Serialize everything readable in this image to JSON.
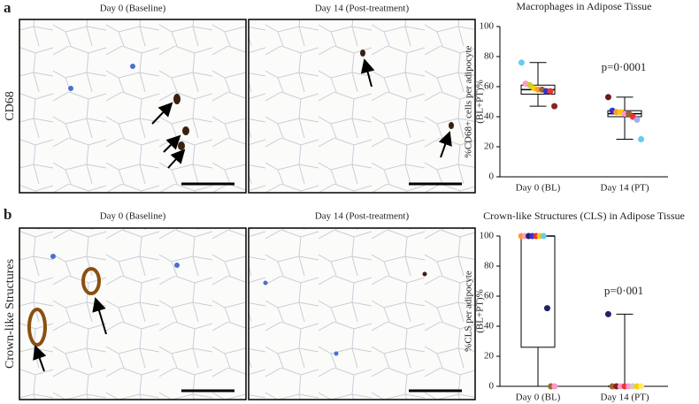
{
  "panels": {
    "a": {
      "label": "a",
      "row_label": "CD68",
      "image_titles": [
        "Day 0 (Baseline)",
        "Day 14 (Post-treatment)"
      ]
    },
    "b": {
      "label": "b",
      "row_label": "Crown-like Structures",
      "image_titles": [
        "Day 0 (Baseline)",
        "Day 14 (Post-treatment)"
      ]
    }
  },
  "chart_data": [
    {
      "type": "box",
      "title": "Macrophages in Adipose Tissue",
      "ylabel": [
        "%CD68+ cells per adipocyte",
        "(BL+PT)%"
      ],
      "categories": [
        "Day 0 (BL)",
        "Day 14 (PT)"
      ],
      "ylim": [
        0,
        100
      ],
      "yticks": [
        0,
        20,
        40,
        60,
        80,
        100
      ],
      "annotation": "p=0·0001",
      "boxes": [
        {
          "min": 47,
          "q1": 55,
          "median": 58,
          "q3": 61,
          "max": 76
        },
        {
          "min": 25,
          "q1": 40,
          "median": 42,
          "q3": 44,
          "max": 53
        }
      ],
      "points": [
        {
          "values": [
            76,
            62,
            61,
            59,
            58,
            58,
            57,
            57,
            47
          ],
          "colors": [
            "#66ccee",
            "#ff99cc",
            "#cccc33",
            "#ffcc00",
            "#ff9933",
            "#996633",
            "#3333cc",
            "#ee3333",
            "#882222"
          ]
        },
        {
          "values": [
            53,
            44,
            43,
            43,
            42,
            42,
            40,
            38,
            25
          ],
          "colors": [
            "#6b1a1a",
            "#3333cc",
            "#ff9933",
            "#ffcc00",
            "#ff99cc",
            "#996633",
            "#ee3333",
            "#aaaaee",
            "#66ccee"
          ]
        }
      ]
    },
    {
      "type": "box",
      "title": "Crown-like Structures (CLS) in Adipose Tissue",
      "ylabel": [
        "%CLS per adipocyte",
        "(BL+PT)%"
      ],
      "categories": [
        "Day 0 (BL)",
        "Day 14 (PT)"
      ],
      "ylim": [
        0,
        100
      ],
      "yticks": [
        0,
        20,
        40,
        60,
        80,
        100
      ],
      "annotation": "p=0·001",
      "boxes": [
        {
          "min": 0,
          "q1": 26,
          "median": 100,
          "q3": 100,
          "max": 100
        },
        {
          "min": 0,
          "q1": 0,
          "median": 0,
          "q3": 0,
          "max": 48
        }
      ],
      "points": [
        {
          "values": [
            100,
            100,
            100,
            100,
            100,
            100,
            100,
            52,
            0,
            0
          ],
          "colors": [
            "#ff9933",
            "#ff99cc",
            "#222266",
            "#3333cc",
            "#ee3333",
            "#ffcc00",
            "#66ccee",
            "#222266",
            "#996633",
            "#ff99cc"
          ]
        },
        {
          "values": [
            48,
            0,
            0,
            0,
            0,
            0,
            0,
            0,
            0
          ],
          "colors": [
            "#222266",
            "#996633",
            "#882222",
            "#ff99cc",
            "#ee3333",
            "#ff99cc",
            "#cccccc",
            "#ffcc00",
            "#ffee66"
          ]
        }
      ]
    }
  ]
}
